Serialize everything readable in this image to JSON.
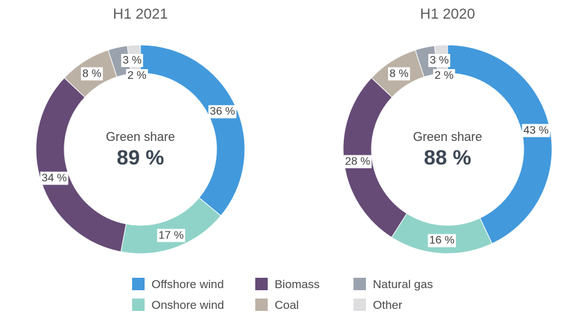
{
  "chart_data": [
    {
      "type": "pie",
      "variant": "donut",
      "title": "H1 2021",
      "center": {
        "label": "Green share",
        "value": "89 %"
      },
      "categories": [
        "Offshore wind",
        "Onshore wind",
        "Biomass",
        "Coal",
        "Natural gas",
        "Other"
      ],
      "values": [
        36,
        17,
        34,
        8,
        3,
        2
      ],
      "labels": [
        "36 %",
        "17 %",
        "34 %",
        "8 %",
        "3 %",
        "2 %"
      ],
      "legend": "bottom"
    },
    {
      "type": "pie",
      "variant": "donut",
      "title": "H1 2020",
      "center": {
        "label": "Green share",
        "value": "88 %"
      },
      "categories": [
        "Offshore wind",
        "Onshore wind",
        "Biomass",
        "Coal",
        "Natural gas",
        "Other"
      ],
      "values": [
        43,
        16,
        28,
        8,
        3,
        2
      ],
      "labels": [
        "43 %",
        "16 %",
        "28 %",
        "8 %",
        "3 %",
        "2 %"
      ],
      "legend": "bottom"
    }
  ],
  "legend": {
    "items": [
      {
        "name": "Offshore wind",
        "color": "#4299dc"
      },
      {
        "name": "Biomass",
        "color": "#654b76"
      },
      {
        "name": "Natural gas",
        "color": "#9aa3ad"
      },
      {
        "name": "Onshore wind",
        "color": "#8fd3c8"
      },
      {
        "name": "Coal",
        "color": "#bcb1a5"
      },
      {
        "name": "Other",
        "color": "#dedee0"
      }
    ]
  },
  "colors": {
    "Offshore wind": "#4299dc",
    "Onshore wind": "#8fd3c8",
    "Biomass": "#654b76",
    "Coal": "#bcb1a5",
    "Natural gas": "#9aa3ad",
    "Other": "#dedee0"
  }
}
